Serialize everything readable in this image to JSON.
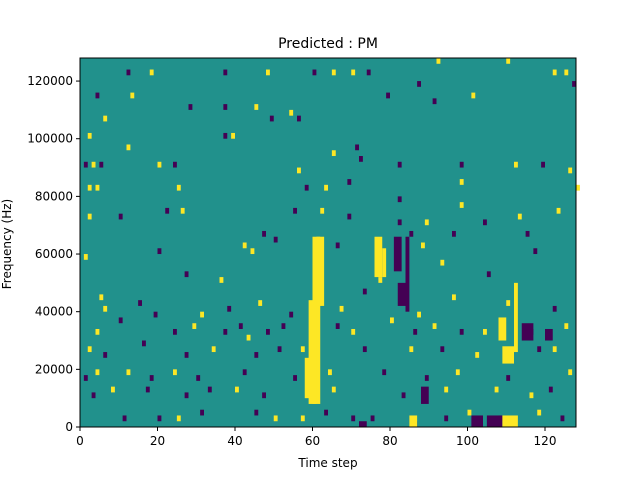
{
  "chart_data": {
    "type": "heatmap",
    "title": "Predicted : PM",
    "xlabel": "Time step",
    "ylabel": "Frequency (Hz)",
    "xlim": [
      0,
      128
    ],
    "ylim": [
      0,
      128000
    ],
    "x_ticks": [
      0,
      20,
      40,
      60,
      80,
      100,
      120
    ],
    "y_ticks": [
      0,
      20000,
      40000,
      60000,
      80000,
      100000,
      120000
    ],
    "grid": false,
    "legend": "none",
    "colormap": "viridis",
    "colors": {
      "low": "#440154",
      "background": "#21918c",
      "high": "#fde725"
    },
    "background_value": 0,
    "cell_height_hz": 2000,
    "cells": [
      [
        12,
        122000,
        -1
      ],
      [
        18,
        122000,
        1
      ],
      [
        37,
        122000,
        -1
      ],
      [
        48,
        122000,
        1
      ],
      [
        60,
        122000,
        -1
      ],
      [
        65,
        122000,
        1
      ],
      [
        70,
        122000,
        1
      ],
      [
        74,
        122000,
        -1
      ],
      [
        92,
        126000,
        1
      ],
      [
        110,
        126000,
        1
      ],
      [
        122,
        122000,
        1
      ],
      [
        125,
        122000,
        1
      ],
      [
        4,
        114000,
        -1
      ],
      [
        13,
        114000,
        1
      ],
      [
        28,
        110000,
        -1
      ],
      [
        37,
        110000,
        -1
      ],
      [
        45,
        110000,
        1
      ],
      [
        49,
        106000,
        -1
      ],
      [
        54,
        108000,
        1
      ],
      [
        56,
        106000,
        -1
      ],
      [
        79,
        114000,
        -1
      ],
      [
        87,
        118000,
        -1
      ],
      [
        91,
        112000,
        -1
      ],
      [
        101,
        114000,
        1
      ],
      [
        127,
        118000,
        -1
      ],
      [
        6,
        106000,
        1
      ],
      [
        37,
        100000,
        -1
      ],
      [
        39,
        100000,
        1
      ],
      [
        2,
        100000,
        1
      ],
      [
        12,
        96000,
        1
      ],
      [
        1,
        90000,
        -1
      ],
      [
        3,
        90000,
        1
      ],
      [
        5,
        90000,
        -1
      ],
      [
        20,
        90000,
        1
      ],
      [
        24,
        90000,
        -1
      ],
      [
        56,
        88000,
        1
      ],
      [
        65,
        94000,
        1
      ],
      [
        71,
        96000,
        -1
      ],
      [
        72,
        92000,
        -1
      ],
      [
        82,
        90000,
        -1
      ],
      [
        98,
        90000,
        -1
      ],
      [
        112,
        90000,
        1
      ],
      [
        119,
        90000,
        -1
      ],
      [
        126,
        88000,
        1
      ],
      [
        2,
        82000,
        1
      ],
      [
        4,
        82000,
        1
      ],
      [
        25,
        82000,
        1
      ],
      [
        58,
        82000,
        -1
      ],
      [
        63,
        82000,
        1
      ],
      [
        69,
        84000,
        -1
      ],
      [
        82,
        78000,
        -1
      ],
      [
        98,
        84000,
        1
      ],
      [
        98,
        76000,
        1
      ],
      [
        128,
        82000,
        1
      ],
      [
        2,
        72000,
        1
      ],
      [
        10,
        72000,
        -1
      ],
      [
        22,
        74000,
        -1
      ],
      [
        26,
        74000,
        1
      ],
      [
        55,
        74000,
        -1
      ],
      [
        62,
        74000,
        1
      ],
      [
        69,
        72000,
        -1
      ],
      [
        82,
        70000,
        -1
      ],
      [
        89,
        70000,
        1
      ],
      [
        104,
        70000,
        -1
      ],
      [
        113,
        72000,
        1
      ],
      [
        123,
        74000,
        1
      ],
      [
        20,
        60000,
        -1
      ],
      [
        42,
        62000,
        1
      ],
      [
        47,
        66000,
        -1
      ],
      [
        50,
        64000,
        -1
      ],
      [
        66,
        62000,
        -1
      ],
      [
        85,
        66000,
        -1
      ],
      [
        88,
        62000,
        1
      ],
      [
        96,
        66000,
        -1
      ],
      [
        115,
        66000,
        -1
      ],
      [
        1,
        58000,
        1
      ],
      [
        27,
        52000,
        -1
      ],
      [
        36,
        50000,
        1
      ],
      [
        44,
        60000,
        1
      ],
      [
        77,
        50000,
        1
      ],
      [
        93,
        56000,
        1
      ],
      [
        105,
        52000,
        -1
      ],
      [
        117,
        60000,
        -1
      ],
      [
        5,
        44000,
        1
      ],
      [
        6,
        40000,
        1
      ],
      [
        15,
        42000,
        -1
      ],
      [
        31,
        38000,
        1
      ],
      [
        38,
        40000,
        -1
      ],
      [
        46,
        42000,
        1
      ],
      [
        54,
        38000,
        -1
      ],
      [
        67,
        40000,
        1
      ],
      [
        73,
        46000,
        -1
      ],
      [
        87,
        38000,
        1
      ],
      [
        96,
        44000,
        1
      ],
      [
        110,
        42000,
        1
      ],
      [
        122,
        40000,
        -1
      ],
      [
        4,
        32000,
        1
      ],
      [
        10,
        36000,
        -1
      ],
      [
        19,
        38000,
        -1
      ],
      [
        24,
        32000,
        -1
      ],
      [
        29,
        34000,
        1
      ],
      [
        37,
        32000,
        -1
      ],
      [
        41,
        34000,
        -1
      ],
      [
        43,
        30000,
        1
      ],
      [
        48,
        32000,
        -1
      ],
      [
        52,
        34000,
        -1
      ],
      [
        66,
        34000,
        -1
      ],
      [
        70,
        32000,
        1
      ],
      [
        80,
        36000,
        1
      ],
      [
        86,
        32000,
        -1
      ],
      [
        91,
        34000,
        1
      ],
      [
        98,
        32000,
        -1
      ],
      [
        104,
        32000,
        1
      ],
      [
        116,
        32000,
        -1
      ],
      [
        125,
        34000,
        1
      ],
      [
        2,
        26000,
        1
      ],
      [
        6,
        24000,
        -1
      ],
      [
        16,
        28000,
        -1
      ],
      [
        27,
        24000,
        -1
      ],
      [
        34,
        26000,
        1
      ],
      [
        45,
        24000,
        -1
      ],
      [
        51,
        26000,
        -1
      ],
      [
        57,
        26000,
        1
      ],
      [
        73,
        26000,
        -1
      ],
      [
        85,
        26000,
        1
      ],
      [
        93,
        26000,
        -1
      ],
      [
        102,
        24000,
        1
      ],
      [
        118,
        26000,
        -1
      ],
      [
        122,
        26000,
        1
      ],
      [
        1,
        16000,
        -1
      ],
      [
        4,
        18000,
        1
      ],
      [
        12,
        18000,
        1
      ],
      [
        18,
        16000,
        -1
      ],
      [
        24,
        18000,
        1
      ],
      [
        30,
        16000,
        -1
      ],
      [
        42,
        18000,
        -1
      ],
      [
        55,
        16000,
        -1
      ],
      [
        64,
        18000,
        1
      ],
      [
        78,
        18000,
        -1
      ],
      [
        89,
        16000,
        -1
      ],
      [
        97,
        18000,
        1
      ],
      [
        110,
        16000,
        -1
      ],
      [
        126,
        18000,
        1
      ],
      [
        3,
        10000,
        -1
      ],
      [
        8,
        12000,
        1
      ],
      [
        17,
        12000,
        -1
      ],
      [
        27,
        10000,
        -1
      ],
      [
        33,
        12000,
        -1
      ],
      [
        40,
        12000,
        1
      ],
      [
        47,
        10000,
        -1
      ],
      [
        65,
        12000,
        1
      ],
      [
        83,
        10000,
        -1
      ],
      [
        94,
        12000,
        1
      ],
      [
        107,
        12000,
        1
      ],
      [
        116,
        10000,
        1
      ],
      [
        121,
        12000,
        -1
      ],
      [
        11,
        2000,
        -1
      ],
      [
        20,
        2000,
        -1
      ],
      [
        25,
        2000,
        1
      ],
      [
        31,
        4000,
        -1
      ],
      [
        45,
        4000,
        -1
      ],
      [
        50,
        2000,
        1
      ],
      [
        57,
        2000,
        1
      ],
      [
        63,
        4000,
        -1
      ],
      [
        70,
        2000,
        -1
      ],
      [
        75,
        2000,
        -1
      ],
      [
        86,
        0,
        -1
      ],
      [
        94,
        2000,
        -1
      ],
      [
        100,
        4000,
        1
      ],
      [
        108,
        2000,
        -1
      ],
      [
        118,
        4000,
        1
      ],
      [
        124,
        2000,
        -1
      ]
    ],
    "blocks": [
      [
        60,
        62,
        8000,
        66000,
        1
      ],
      [
        61,
        63,
        42000,
        66000,
        1
      ],
      [
        59,
        61,
        8000,
        44000,
        1
      ],
      [
        58,
        60,
        10000,
        24000,
        1
      ],
      [
        76,
        78,
        52000,
        66000,
        1
      ],
      [
        78,
        79,
        52000,
        62000,
        1
      ],
      [
        81,
        83,
        54000,
        66000,
        -1
      ],
      [
        84,
        85,
        40000,
        66000,
        -1
      ],
      [
        82,
        84,
        42000,
        50000,
        -1
      ],
      [
        72,
        74,
        0,
        2000,
        -1
      ],
      [
        88,
        90,
        8000,
        14000,
        -1
      ],
      [
        85,
        87,
        0,
        4000,
        1
      ],
      [
        105,
        109,
        0,
        4000,
        -1
      ],
      [
        109,
        113,
        0,
        4000,
        1
      ],
      [
        101,
        104,
        0,
        4000,
        -1
      ],
      [
        112,
        113,
        26000,
        50000,
        1
      ],
      [
        108,
        110,
        30000,
        38000,
        1
      ],
      [
        114,
        117,
        30000,
        36000,
        -1
      ],
      [
        109,
        112,
        22000,
        28000,
        1
      ],
      [
        120,
        122,
        30000,
        34000,
        -1
      ]
    ]
  }
}
